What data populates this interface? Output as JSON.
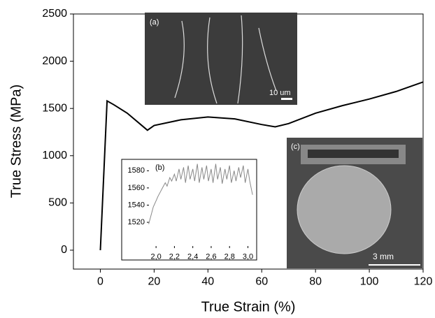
{
  "chart_data": [
    {
      "type": "line",
      "xlabel": "True Strain (%)",
      "ylabel": "True Stress (MPa)",
      "x": [
        0,
        2.5,
        5,
        10,
        15,
        17.5,
        20,
        30,
        40,
        50,
        60,
        65,
        70,
        80,
        90,
        100,
        110,
        120
      ],
      "series": [
        {
          "color": "#000000",
          "values": [
            0,
            1580,
            1540,
            1450,
            1330,
            1270,
            1320,
            1380,
            1410,
            1390,
            1330,
            1305,
            1340,
            1450,
            1530,
            1600,
            1680,
            1780
          ]
        }
      ],
      "xlim": [
        -10,
        120
      ],
      "ylim": [
        -200,
        2500
      ],
      "xticks": [
        0,
        20,
        40,
        60,
        80,
        100,
        120
      ],
      "yticks": [
        0,
        500,
        1000,
        1500,
        2000,
        2500
      ],
      "annotations": [
        "(a)",
        "10 um",
        "(c)",
        "3 mm"
      ]
    },
    {
      "type": "line",
      "title": "(b)",
      "x": [
        1.92,
        1.95,
        1.97,
        2.0,
        2.02,
        2.05,
        2.07,
        2.1,
        2.12,
        2.15,
        2.17,
        2.2,
        2.22,
        2.25,
        2.27,
        2.3,
        2.32,
        2.35,
        2.37,
        2.4,
        2.42,
        2.45,
        2.47,
        2.5,
        2.52,
        2.55,
        2.57,
        2.6,
        2.62,
        2.65,
        2.67,
        2.7,
        2.72,
        2.75,
        2.77,
        2.8,
        2.82,
        2.85,
        2.87,
        2.9,
        2.92,
        2.95,
        2.97,
        3.0,
        3.02,
        3.05
      ],
      "series": [
        {
          "color": "#888888",
          "values": [
            1518,
            1530,
            1538,
            1545,
            1550,
            1556,
            1560,
            1566,
            1562,
            1572,
            1568,
            1576,
            1568,
            1582,
            1570,
            1584,
            1566,
            1586,
            1570,
            1582,
            1568,
            1588,
            1566,
            1584,
            1570,
            1586,
            1568,
            1582,
            1566,
            1588,
            1570,
            1584,
            1565,
            1582,
            1570,
            1586,
            1566,
            1580,
            1568,
            1584,
            1572,
            1586,
            1566,
            1582,
            1568,
            1552
          ]
        }
      ],
      "xlim": [
        1.9,
        3.08
      ],
      "ylim": [
        1490,
        1590
      ],
      "xticks": [
        {
          "value": 2.0,
          "label": "2,0"
        },
        {
          "value": 2.2,
          "label": "2,2"
        },
        {
          "value": 2.4,
          "label": "2,4"
        },
        {
          "value": 2.6,
          "label": "2,6"
        },
        {
          "value": 2.8,
          "label": "2,8"
        },
        {
          "value": 3.0,
          "label": "3,0"
        }
      ],
      "yticks": [
        1520,
        1540,
        1560,
        1580
      ]
    }
  ]
}
